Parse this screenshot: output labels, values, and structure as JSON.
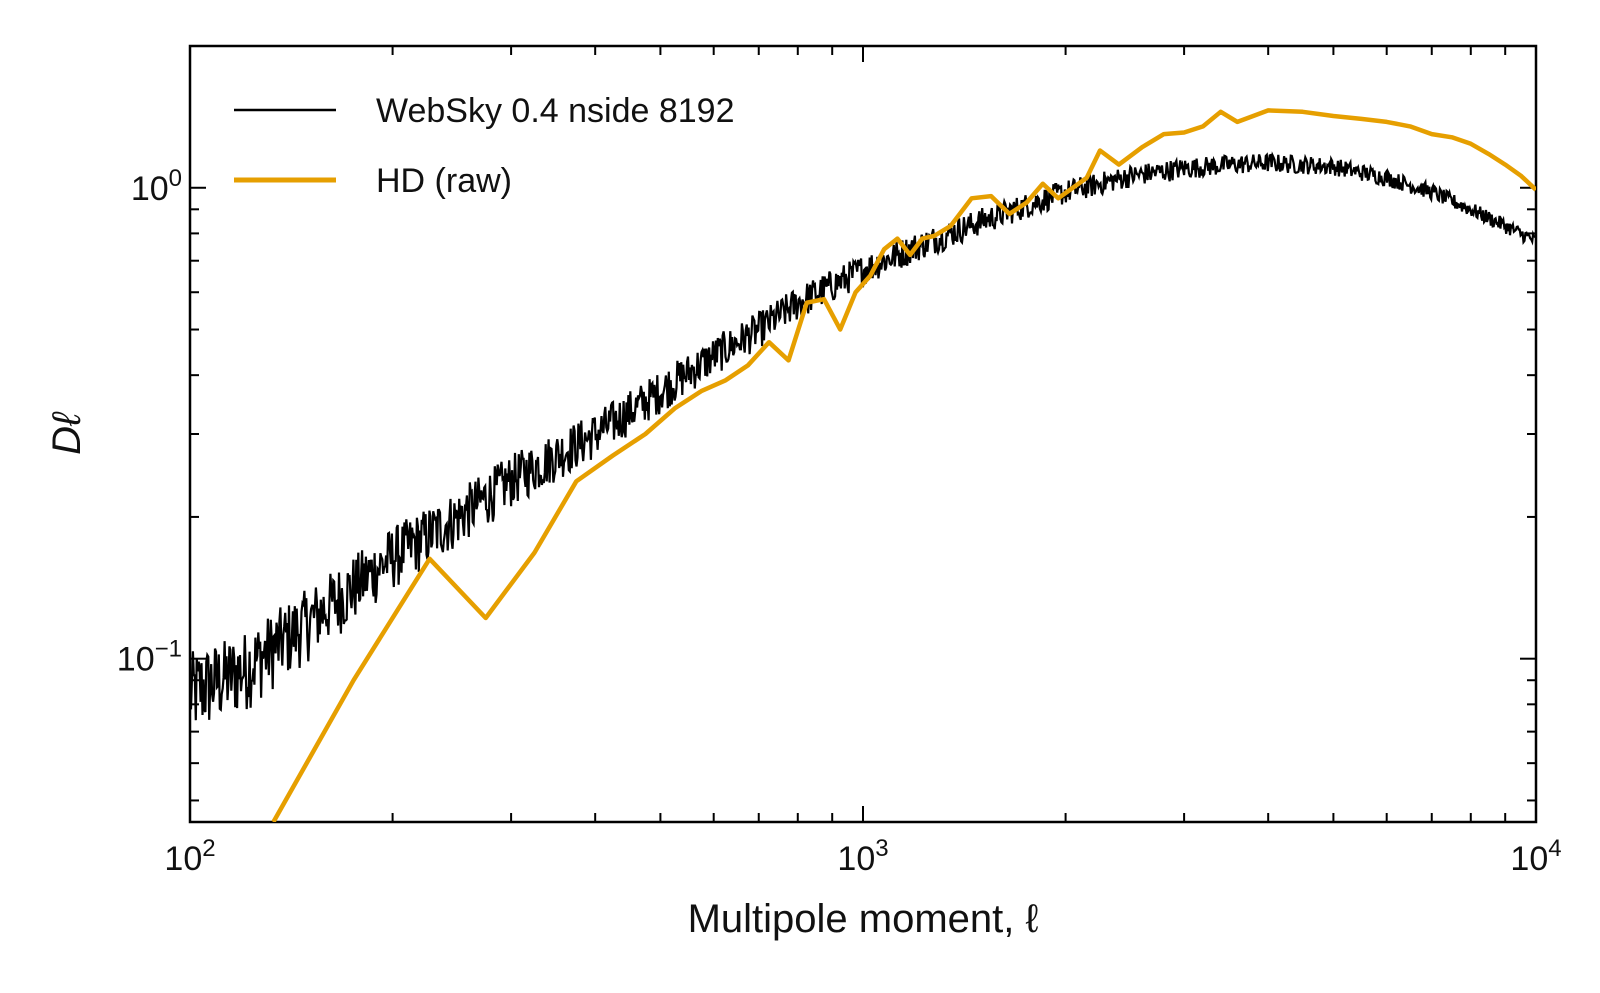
{
  "chart_data": {
    "type": "line",
    "title": "",
    "xlabel": "Multipole moment, ℓ",
    "ylabel": "Dℓ",
    "xscale": "log",
    "yscale": "log",
    "xlim": [
      100,
      10000
    ],
    "ylim": [
      0.045,
      2.0
    ],
    "grid": false,
    "legend_position": "top-left",
    "xticks": [
      {
        "value": 100,
        "base": "10",
        "exp": "2"
      },
      {
        "value": 1000,
        "base": "10",
        "exp": "3"
      },
      {
        "value": 10000,
        "base": "10",
        "exp": "4"
      }
    ],
    "yticks": [
      {
        "value": 0.1,
        "base": "10",
        "exp": "−1"
      },
      {
        "value": 1.0,
        "base": "10",
        "exp": "0"
      }
    ],
    "series": [
      {
        "name": "WebSky 0.4 nside 8192",
        "color": "#000000",
        "style": "noisy thin line",
        "x": [
          100,
          120,
          150,
          200,
          250,
          300,
          400,
          500,
          600,
          700,
          800,
          1000,
          1200,
          1500,
          2000,
          2500,
          3000,
          3500,
          4000,
          5000,
          6000,
          7000,
          8000,
          9000,
          10000
        ],
        "y": [
          0.085,
          0.095,
          0.12,
          0.165,
          0.2,
          0.24,
          0.3,
          0.37,
          0.44,
          0.5,
          0.57,
          0.67,
          0.75,
          0.85,
          0.98,
          1.06,
          1.1,
          1.12,
          1.13,
          1.11,
          1.05,
          0.98,
          0.9,
          0.83,
          0.77
        ]
      },
      {
        "name": "HD (raw)",
        "color": "#E69F00",
        "style": "thick line",
        "x": [
          133,
          175,
          227,
          275,
          325,
          375,
          425,
          475,
          525,
          575,
          625,
          675,
          725,
          775,
          825,
          875,
          925,
          975,
          1025,
          1075,
          1125,
          1175,
          1225,
          1275,
          1350,
          1450,
          1550,
          1650,
          1750,
          1850,
          1950,
          2050,
          2150,
          2250,
          2400,
          2600,
          2800,
          3000,
          3200,
          3400,
          3600,
          3800,
          4000,
          4500,
          5000,
          5500,
          6000,
          6500,
          7000,
          7500,
          8000,
          8500,
          9000,
          9500,
          10000
        ],
        "y": [
          0.045,
          0.09,
          0.163,
          0.122,
          0.168,
          0.238,
          0.27,
          0.3,
          0.34,
          0.37,
          0.39,
          0.42,
          0.47,
          0.43,
          0.57,
          0.58,
          0.5,
          0.6,
          0.65,
          0.74,
          0.78,
          0.72,
          0.78,
          0.79,
          0.83,
          0.95,
          0.96,
          0.88,
          0.93,
          1.02,
          0.95,
          1.0,
          1.05,
          1.2,
          1.12,
          1.22,
          1.3,
          1.31,
          1.35,
          1.45,
          1.38,
          1.42,
          1.46,
          1.45,
          1.42,
          1.4,
          1.38,
          1.35,
          1.3,
          1.28,
          1.24,
          1.18,
          1.12,
          1.06,
          0.99
        ]
      }
    ]
  }
}
